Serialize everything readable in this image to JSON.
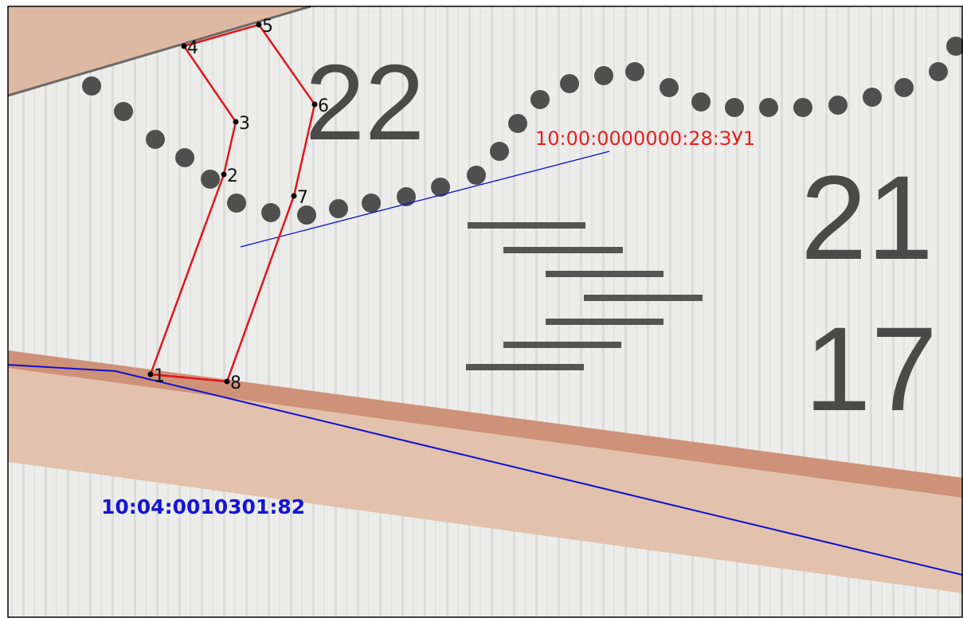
{
  "parcel_label": "10:00:0000000:28:ЗУ1",
  "neighbor_label": "10:04:0010301:82",
  "map_numbers": [
    "22",
    "21",
    "17"
  ],
  "points": [
    {
      "label": "1"
    },
    {
      "label": "2"
    },
    {
      "label": "3"
    },
    {
      "label": "4"
    },
    {
      "label": "5"
    },
    {
      "label": "6"
    },
    {
      "label": "7"
    },
    {
      "label": "8"
    }
  ]
}
